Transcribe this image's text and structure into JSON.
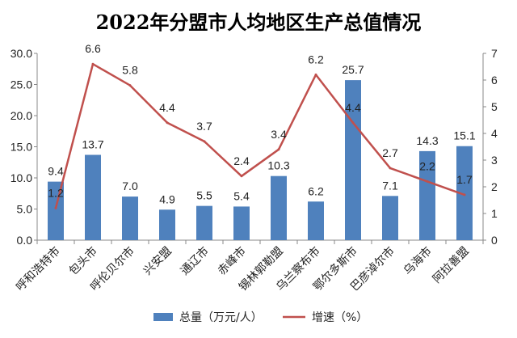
{
  "chart_data": {
    "type": "bar",
    "title": "2022年分盟市人均地区生产总值情况",
    "categories": [
      "呼和浩特市",
      "包头市",
      "呼伦贝尔市",
      "兴安盟",
      "通辽市",
      "赤峰市",
      "锡林郭勒盟",
      "乌兰察布市",
      "鄂尔多斯市",
      "巴彦淖尔市",
      "乌海市",
      "阿拉善盟"
    ],
    "series": [
      {
        "name": "总量（万元/人）",
        "type": "bar",
        "axis": "left",
        "color": "#4f81bd",
        "values": [
          9.4,
          13.7,
          7.0,
          4.9,
          5.5,
          5.4,
          10.3,
          6.2,
          25.7,
          7.1,
          14.3,
          15.1
        ],
        "labels": [
          "9.4",
          "13.7",
          "7.0",
          "4.9",
          "5.5",
          "5.4",
          "10.3",
          "6.2",
          "25.7",
          "7.1",
          "14.3",
          "15.1"
        ]
      },
      {
        "name": "增速（%）",
        "type": "line",
        "axis": "right",
        "color": "#c0504d",
        "values": [
          1.2,
          6.6,
          5.8,
          4.4,
          3.7,
          2.4,
          3.4,
          6.2,
          4.4,
          2.7,
          2.2,
          1.7
        ],
        "labels": [
          "1.2",
          "6.6",
          "5.8",
          "4.4",
          "3.7",
          "2.4",
          "3.4",
          "6.2",
          "4.4",
          "2.7",
          "2.2",
          "1.7"
        ]
      }
    ],
    "y_left": {
      "range": [
        0,
        30
      ],
      "ticks": [
        "0.0",
        "5.0",
        "10.0",
        "15.0",
        "20.0",
        "25.0",
        "30.0"
      ],
      "step": 5
    },
    "y_right": {
      "range": [
        0,
        7
      ],
      "ticks": [
        "0",
        "1",
        "2",
        "3",
        "4",
        "5",
        "6",
        "7"
      ],
      "step": 1
    },
    "legend_position": "bottom",
    "grid": false
  }
}
